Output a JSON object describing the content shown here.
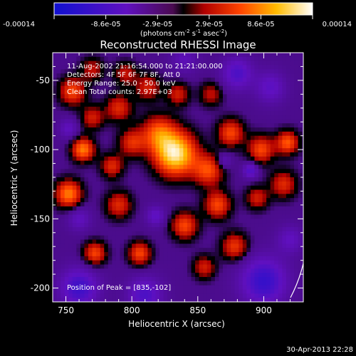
{
  "chart_data": {
    "type": "heatmap",
    "title": "Reconstructed RHESSI Image",
    "xlabel": "Heliocentric X (arcsec)",
    "ylabel": "Heliocentric Y (arcsec)",
    "xlim": [
      740,
      930
    ],
    "ylim": [
      -210,
      -30
    ],
    "x_ticks": [
      750,
      800,
      850,
      900
    ],
    "y_ticks": [
      -50,
      -100,
      -150,
      -200
    ],
    "colorbar": {
      "ticks": [
        "-0.00014",
        "-8.6e-05",
        "-2.9e-05",
        "2.9e-05",
        "8.6e-05",
        "0.00014"
      ],
      "unit_main": "(photons cm",
      "unit_exp1": "-2",
      "unit_mid": " s",
      "unit_exp2": "-1",
      "unit_end": " asec",
      "unit_exp3": "-2",
      "unit_close": ")",
      "range": [
        -0.00014,
        0.00014
      ]
    },
    "annotations": [
      "11-Aug-2002 21:16:54.000 to 21:21:00.000",
      "Detectors: 4F 5F 6F 7F 8F, Att 0",
      "Energy Range: 25.0 - 50.0 keV",
      "Clean    Total counts: 2.97E+03"
    ],
    "peak_label": "Position of Peak = [835,-102]",
    "peak": [
      835,
      -102
    ],
    "blobs": [
      {
        "x": 833,
        "y": -103,
        "a": 1.05,
        "s": 11
      },
      {
        "x": 820,
        "y": -88,
        "a": 0.55,
        "s": 9
      },
      {
        "x": 800,
        "y": -95,
        "a": 0.45,
        "s": 7
      },
      {
        "x": 790,
        "y": -70,
        "a": 0.45,
        "s": 7
      },
      {
        "x": 812,
        "y": -55,
        "a": 0.4,
        "s": 7
      },
      {
        "x": 795,
        "y": -45,
        "a": 0.35,
        "s": 6
      },
      {
        "x": 770,
        "y": -42,
        "a": 0.35,
        "s": 6
      },
      {
        "x": 755,
        "y": -58,
        "a": 0.55,
        "s": 7
      },
      {
        "x": 770,
        "y": -77,
        "a": 0.4,
        "s": 6
      },
      {
        "x": 763,
        "y": -100,
        "a": 0.7,
        "s": 6
      },
      {
        "x": 785,
        "y": -112,
        "a": 0.45,
        "s": 6
      },
      {
        "x": 752,
        "y": -132,
        "a": 0.7,
        "s": 7
      },
      {
        "x": 790,
        "y": -140,
        "a": 0.45,
        "s": 7
      },
      {
        "x": 772,
        "y": -175,
        "a": 0.55,
        "s": 6
      },
      {
        "x": 806,
        "y": -175,
        "a": 0.55,
        "s": 6
      },
      {
        "x": 840,
        "y": -155,
        "a": 0.55,
        "s": 7
      },
      {
        "x": 865,
        "y": -140,
        "a": 0.55,
        "s": 7
      },
      {
        "x": 858,
        "y": -115,
        "a": 0.55,
        "s": 8
      },
      {
        "x": 875,
        "y": -88,
        "a": 0.55,
        "s": 7
      },
      {
        "x": 898,
        "y": -100,
        "a": 0.55,
        "s": 7
      },
      {
        "x": 918,
        "y": -95,
        "a": 0.6,
        "s": 6
      },
      {
        "x": 915,
        "y": -125,
        "a": 0.45,
        "s": 7
      },
      {
        "x": 895,
        "y": -135,
        "a": 0.4,
        "s": 6
      },
      {
        "x": 878,
        "y": -170,
        "a": 0.5,
        "s": 7
      },
      {
        "x": 855,
        "y": -185,
        "a": 0.4,
        "s": 6
      },
      {
        "x": 835,
        "y": -60,
        "a": 0.4,
        "s": 6
      },
      {
        "x": 860,
        "y": -60,
        "a": 0.35,
        "s": 6
      },
      {
        "x": 880,
        "y": -45,
        "a": -0.45,
        "s": 8
      },
      {
        "x": 905,
        "y": -55,
        "a": -0.35,
        "s": 8
      },
      {
        "x": 840,
        "y": -35,
        "a": -0.25,
        "s": 7
      },
      {
        "x": 900,
        "y": -195,
        "a": -0.6,
        "s": 12
      },
      {
        "x": 760,
        "y": -200,
        "a": -0.55,
        "s": 10
      },
      {
        "x": 810,
        "y": -205,
        "a": -0.45,
        "s": 9
      },
      {
        "x": 760,
        "y": -150,
        "a": -0.3,
        "s": 6
      },
      {
        "x": 920,
        "y": -165,
        "a": -0.3,
        "s": 7
      },
      {
        "x": 890,
        "y": -115,
        "a": -0.45,
        "s": 4
      },
      {
        "x": 870,
        "y": -108,
        "a": -0.3,
        "s": 4
      },
      {
        "x": 818,
        "y": -148,
        "a": -0.35,
        "s": 5
      },
      {
        "x": 752,
        "y": -85,
        "a": -0.3,
        "s": 5
      }
    ]
  },
  "footer": {
    "timestamp": "30-Apr-2013 22:28"
  }
}
